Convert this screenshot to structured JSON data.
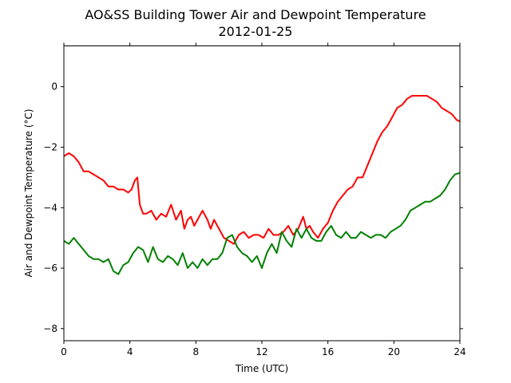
{
  "chart_data": {
    "type": "line",
    "title": "AO&SS Building Tower Air and Dewpoint Temperature",
    "subtitle": "2012-01-25",
    "xlabel": "Time (UTC)",
    "ylabel": "Air and Dewpoint Temperature (°C)",
    "xlim": [
      0,
      24
    ],
    "ylim": [
      -8.4,
      1.35
    ],
    "x_ticks": [
      0,
      4,
      8,
      12,
      16,
      20,
      24
    ],
    "y_ticks": [
      -8,
      -6,
      -4,
      -2,
      0
    ],
    "x_tick_labels": [
      "0",
      "4",
      "8",
      "12",
      "16",
      "20",
      "24"
    ],
    "y_tick_labels": [
      "−8",
      "−6",
      "−4",
      "−2",
      "0"
    ],
    "grid": false,
    "series": [
      {
        "color": "#ff0000",
        "x": [
          0,
          0.3,
          0.6,
          0.9,
          1.2,
          1.5,
          1.8,
          2.1,
          2.4,
          2.7,
          3.0,
          3.3,
          3.6,
          3.9,
          4.1,
          4.3,
          4.45,
          4.6,
          4.8,
          5.0,
          5.3,
          5.6,
          5.9,
          6.2,
          6.5,
          6.8,
          7.1,
          7.3,
          7.5,
          7.7,
          7.9,
          8.1,
          8.4,
          8.7,
          8.9,
          9.1,
          9.4,
          9.7,
          10.0,
          10.3,
          10.6,
          10.9,
          11.2,
          11.5,
          11.8,
          12.1,
          12.4,
          12.7,
          13.0,
          13.3,
          13.6,
          13.9,
          14.2,
          14.5,
          14.7,
          14.9,
          15.1,
          15.4,
          15.7,
          16.0,
          16.3,
          16.6,
          16.9,
          17.2,
          17.5,
          17.8,
          18.1,
          18.4,
          18.7,
          19.0,
          19.3,
          19.6,
          19.9,
          20.2,
          20.5,
          20.8,
          21.1,
          21.4,
          21.7,
          22.0,
          22.3,
          22.6,
          22.9,
          23.2,
          23.5,
          23.8,
          24.0
        ],
        "y": [
          -2.3,
          -2.2,
          -2.3,
          -2.5,
          -2.8,
          -2.8,
          -2.9,
          -3.0,
          -3.1,
          -3.3,
          -3.3,
          -3.4,
          -3.4,
          -3.5,
          -3.4,
          -3.1,
          -3.0,
          -3.9,
          -4.2,
          -4.2,
          -4.1,
          -4.4,
          -4.2,
          -4.3,
          -3.9,
          -4.4,
          -4.1,
          -4.7,
          -4.4,
          -4.3,
          -4.6,
          -4.4,
          -4.1,
          -4.4,
          -4.7,
          -4.4,
          -4.7,
          -5.0,
          -5.1,
          -5.2,
          -4.9,
          -4.8,
          -5.0,
          -4.9,
          -4.9,
          -5.0,
          -4.7,
          -4.9,
          -4.9,
          -4.8,
          -4.6,
          -4.9,
          -4.7,
          -4.3,
          -4.7,
          -4.6,
          -4.8,
          -5.0,
          -4.7,
          -4.5,
          -4.1,
          -3.8,
          -3.6,
          -3.4,
          -3.3,
          -3.0,
          -3.0,
          -2.6,
          -2.2,
          -1.8,
          -1.5,
          -1.3,
          -1.0,
          -0.7,
          -0.6,
          -0.4,
          -0.3,
          -0.3,
          -0.3,
          -0.3,
          -0.4,
          -0.5,
          -0.7,
          -0.8,
          -0.9,
          -1.1,
          -1.15
        ]
      },
      {
        "color": "#008000",
        "x": [
          0,
          0.3,
          0.6,
          0.9,
          1.2,
          1.5,
          1.8,
          2.1,
          2.4,
          2.7,
          3.0,
          3.3,
          3.6,
          3.9,
          4.2,
          4.5,
          4.8,
          5.1,
          5.4,
          5.7,
          6.0,
          6.3,
          6.6,
          6.9,
          7.2,
          7.5,
          7.8,
          8.1,
          8.4,
          8.7,
          9.0,
          9.3,
          9.6,
          9.9,
          10.2,
          10.5,
          10.8,
          11.1,
          11.4,
          11.7,
          12.0,
          12.3,
          12.6,
          12.9,
          13.2,
          13.5,
          13.8,
          14.1,
          14.4,
          14.7,
          15.0,
          15.3,
          15.6,
          15.9,
          16.2,
          16.5,
          16.8,
          17.1,
          17.4,
          17.7,
          18.0,
          18.3,
          18.6,
          18.9,
          19.2,
          19.5,
          19.8,
          20.1,
          20.4,
          20.7,
          21.0,
          21.3,
          21.6,
          21.9,
          22.2,
          22.5,
          22.8,
          23.1,
          23.4,
          23.7,
          24.0
        ],
        "y": [
          -5.1,
          -5.2,
          -5.0,
          -5.2,
          -5.4,
          -5.6,
          -5.7,
          -5.7,
          -5.8,
          -5.7,
          -6.1,
          -6.2,
          -5.9,
          -5.8,
          -5.5,
          -5.3,
          -5.4,
          -5.8,
          -5.3,
          -5.7,
          -5.8,
          -5.6,
          -5.7,
          -5.9,
          -5.5,
          -6.0,
          -5.8,
          -6.0,
          -5.7,
          -5.9,
          -5.7,
          -5.7,
          -5.5,
          -5.0,
          -4.9,
          -5.3,
          -5.5,
          -5.6,
          -5.8,
          -5.6,
          -6.0,
          -5.5,
          -5.2,
          -5.5,
          -4.8,
          -5.1,
          -5.3,
          -4.7,
          -5.0,
          -4.7,
          -5.0,
          -5.1,
          -5.1,
          -4.8,
          -4.6,
          -4.9,
          -5.0,
          -4.8,
          -5.0,
          -5.0,
          -4.8,
          -4.9,
          -5.0,
          -4.9,
          -4.9,
          -5.0,
          -4.8,
          -4.7,
          -4.6,
          -4.4,
          -4.1,
          -4.0,
          -3.9,
          -3.8,
          -3.8,
          -3.7,
          -3.6,
          -3.4,
          -3.1,
          -2.9,
          -2.85
        ]
      }
    ]
  }
}
